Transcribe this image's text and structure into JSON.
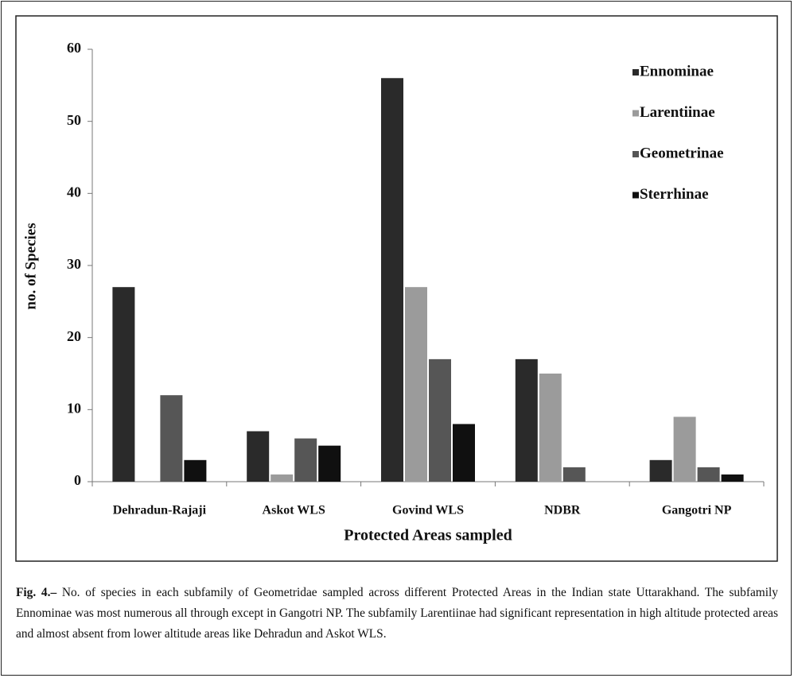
{
  "chart_data": {
    "type": "bar",
    "y_label": "no. of Species",
    "x_label": "Protected Areas sampled",
    "categories": [
      "Dehradun-Rajaji",
      "Askot WLS",
      "Govind WLS",
      "NDBR",
      "Gangotri NP"
    ],
    "series": [
      {
        "name": "Ennominae",
        "color": "#2a2a2a",
        "values": [
          27,
          7,
          56,
          17,
          3
        ]
      },
      {
        "name": "Larentiinae",
        "color": "#9b9b9b",
        "values": [
          0,
          1,
          27,
          15,
          9
        ]
      },
      {
        "name": "Geometrinae",
        "color": "#565656",
        "values": [
          12,
          6,
          17,
          2,
          2
        ]
      },
      {
        "name": "Sterrhinae",
        "color": "#101010",
        "values": [
          3,
          5,
          8,
          0,
          1
        ]
      }
    ],
    "ylim": [
      0,
      60
    ],
    "yticks": [
      0,
      10,
      20,
      30,
      40,
      50,
      60
    ],
    "grid": false,
    "legend": "upper right"
  },
  "caption": {
    "label": "Fig. 4.–",
    "text": " No. of species in each subfamily of Geometridae sampled across different Protected Areas in the Indian state Uttarakhand. The subfamily Ennominae was most numerous all through except in Gangotri NP. The subfamily Larentiinae had significant representation in high altitude protected areas and almost absent from lower altitude areas like Dehradun and Askot WLS."
  }
}
